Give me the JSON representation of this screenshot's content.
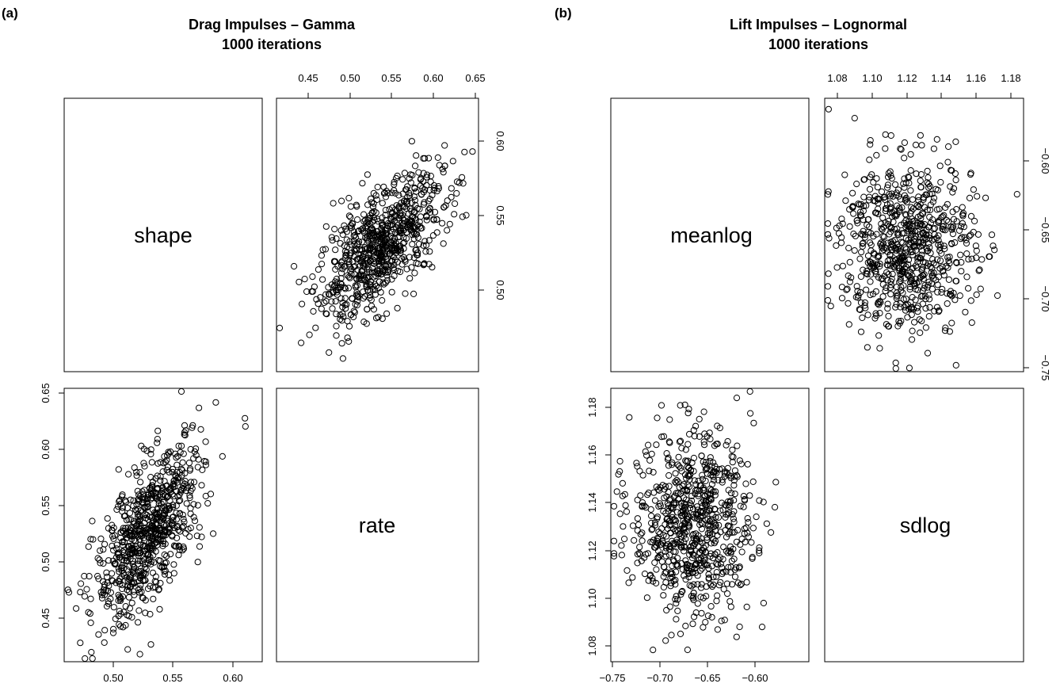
{
  "chart_data": [
    {
      "type": "scatter",
      "panel_label": "(a)",
      "title_lines": [
        "Drag Impulses – Gamma",
        "1000 iterations"
      ],
      "variables": [
        "shape",
        "rate"
      ],
      "ticks": {
        "shape": [
          "0.45",
          "0.50",
          "0.55",
          "0.60",
          "0.65"
        ],
        "rate": [
          "0.50",
          "0.55",
          "0.60"
        ]
      },
      "axis_ticks": {
        "top": [
          "0.45",
          "0.50",
          "0.55",
          "0.60",
          "0.65"
        ],
        "right": [
          "0.50",
          "0.55",
          "0.60"
        ],
        "left": [
          "0.45",
          "0.50",
          "0.55",
          "0.60",
          "0.65"
        ],
        "bottom": [
          "0.50",
          "0.55",
          "0.60"
        ]
      },
      "range": {
        "shape": [
          0.46,
          0.62
        ],
        "rate": [
          0.466,
          0.623
        ]
      },
      "correlation": 0.65,
      "n_points": 750
    },
    {
      "type": "scatter",
      "panel_label": "(b)",
      "title_lines": [
        "Lift Impulses – Lognormal",
        "1000 iterations"
      ],
      "variables": [
        "meanlog",
        "sdlog"
      ],
      "axis_ticks": {
        "top": [
          "1.08",
          "1.10",
          "1.12",
          "1.14",
          "1.16",
          "1.18"
        ],
        "right": [
          "−0.60",
          "−0.65",
          "−0.70",
          "−0.75"
        ],
        "left": [
          "1.08",
          "1.10",
          "1.12",
          "1.14",
          "1.16",
          "1.18"
        ],
        "bottom": [
          "−0.75",
          "−0.70",
          "−0.65",
          "−0.60"
        ]
      },
      "range": {
        "meanlog": [
          -0.745,
          -0.557
        ],
        "sdlog": [
          1.077,
          1.184
        ]
      },
      "correlation": 0.0,
      "n_points": 750
    }
  ]
}
